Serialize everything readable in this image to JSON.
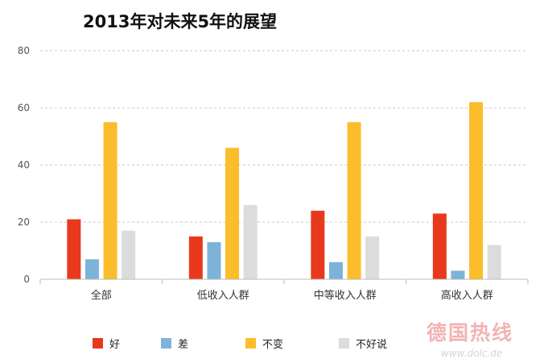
{
  "chart_data": {
    "type": "bar",
    "title": "2013年对未来5年的展望",
    "categories": [
      "全部",
      "低收入人群",
      "中等收入人群",
      "高收入人群"
    ],
    "series": [
      {
        "name": "好",
        "color": "#e8391d",
        "values": [
          21,
          15,
          24,
          23
        ]
      },
      {
        "name": "差",
        "color": "#7db3d8",
        "values": [
          7,
          13,
          6,
          3
        ]
      },
      {
        "name": "不变",
        "color": "#fbbd2c",
        "values": [
          55,
          46,
          55,
          62
        ]
      },
      {
        "name": "不好说",
        "color": "#dcdcdc",
        "values": [
          17,
          26,
          15,
          12
        ]
      }
    ],
    "yticks": [
      0,
      20,
      40,
      60,
      80
    ],
    "ylim": [
      0,
      80
    ],
    "grid": true,
    "legend_position": "bottom"
  },
  "watermark": {
    "text": "德国热线",
    "url": "www.dolc.de"
  }
}
